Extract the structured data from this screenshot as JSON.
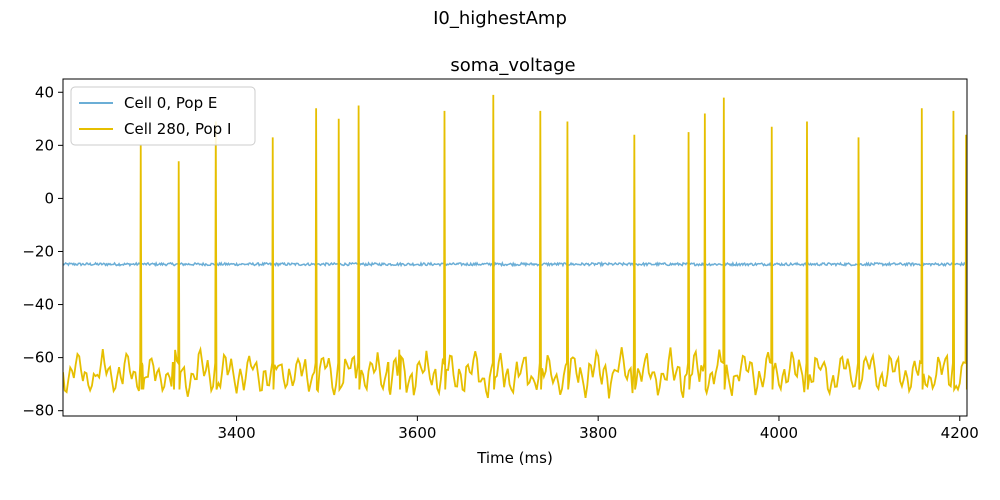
{
  "suptitle": "I0_highestAmp",
  "chart_data": {
    "type": "line",
    "title": "soma_voltage",
    "xlabel": "Time (ms)",
    "ylabel": "",
    "xlim": [
      3208,
      4208
    ],
    "ylim": [
      -82,
      45
    ],
    "xticks": [
      3400,
      3600,
      3800,
      4000,
      4200
    ],
    "yticks": [
      40,
      20,
      0,
      -20,
      -40,
      -60,
      -80
    ],
    "legend_position": "top-left",
    "grid": false,
    "series": [
      {
        "name": "Cell 0, Pop E",
        "color": "#6baed6",
        "baseline_mV": -24.8,
        "noise_mV": 0.5,
        "x_range": [
          3208,
          4208
        ]
      },
      {
        "name": "Cell 280, Pop I",
        "color": "#e6bf00",
        "resting_range_mV": [
          -76,
          -56
        ],
        "x_range": [
          3208,
          4208
        ],
        "spikes": [
          {
            "t": 3294,
            "peak": 20
          },
          {
            "t": 3336,
            "peak": 14
          },
          {
            "t": 3377,
            "peak": 29
          },
          {
            "t": 3440,
            "peak": 23
          },
          {
            "t": 3488,
            "peak": 34
          },
          {
            "t": 3513,
            "peak": 30
          },
          {
            "t": 3535,
            "peak": 35
          },
          {
            "t": 3630,
            "peak": 33
          },
          {
            "t": 3684,
            "peak": 39
          },
          {
            "t": 3736,
            "peak": 33
          },
          {
            "t": 3766,
            "peak": 29
          },
          {
            "t": 3840,
            "peak": 24
          },
          {
            "t": 3900,
            "peak": 25
          },
          {
            "t": 3918,
            "peak": 32
          },
          {
            "t": 3939,
            "peak": 38
          },
          {
            "t": 3992,
            "peak": 27
          },
          {
            "t": 4031,
            "peak": 29
          },
          {
            "t": 4088,
            "peak": 23
          },
          {
            "t": 4158,
            "peak": 34
          },
          {
            "t": 4193,
            "peak": 33
          },
          {
            "t": 4207,
            "peak": 24
          }
        ],
        "small_events": [
          {
            "t": 3580,
            "peak": -57
          },
          {
            "t": 3568,
            "peak": -62
          },
          {
            "t": 3330,
            "peak": -62
          },
          {
            "t": 3296,
            "peak": -63
          }
        ]
      }
    ]
  }
}
